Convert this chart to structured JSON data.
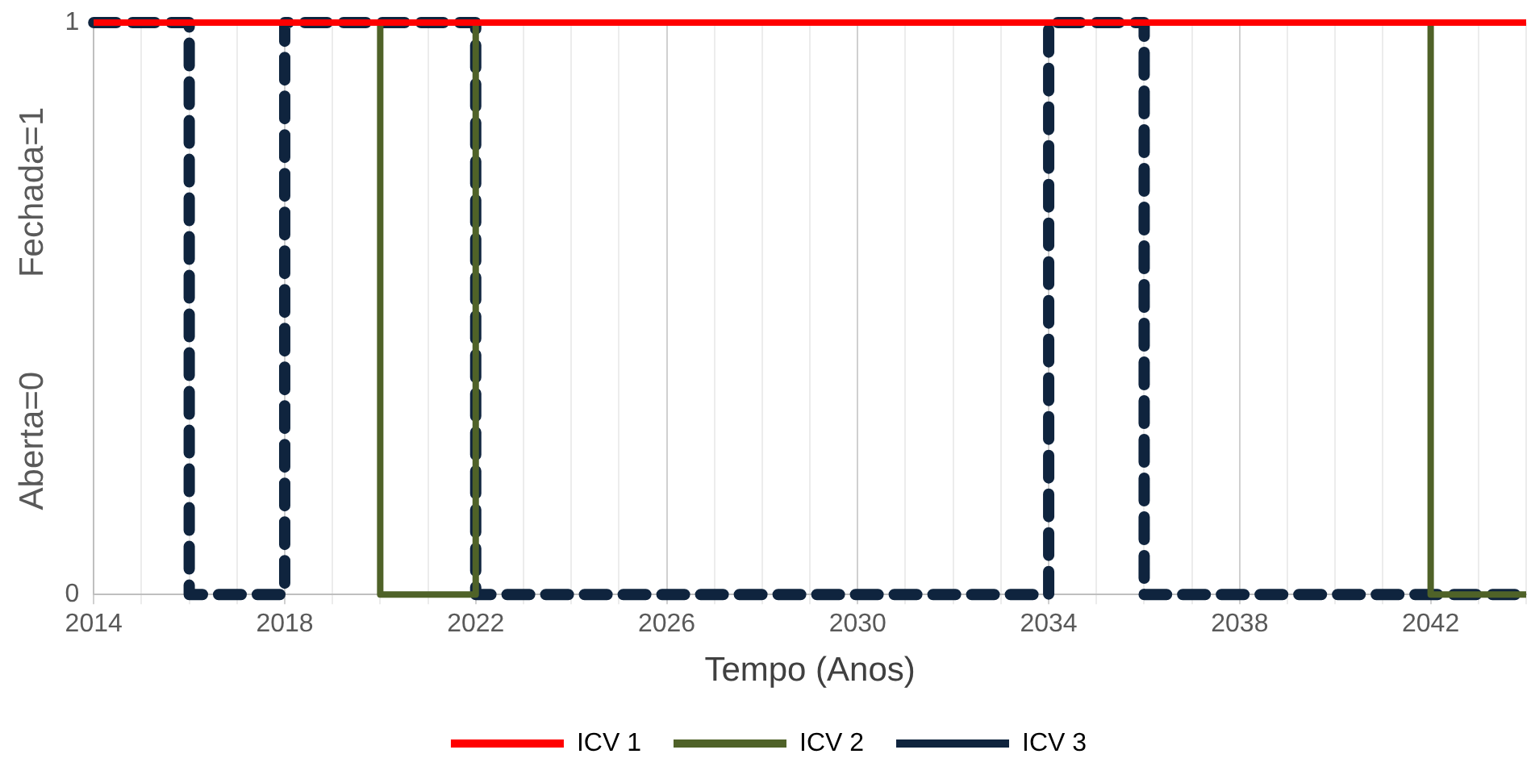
{
  "chart_data": {
    "type": "step",
    "xlabel": "Tempo (Anos)",
    "ylabel": "Aberta=0          Fechada=1",
    "series": [
      {
        "name": "ICV 1",
        "color": "#ff0000",
        "x": [
          2014,
          2044
        ],
        "values": [
          1,
          1
        ]
      },
      {
        "name": "ICV 2",
        "color": "#4f6228",
        "x": [
          2014,
          2020,
          2022,
          2042,
          2044
        ],
        "values": [
          1,
          0,
          1,
          0,
          0
        ]
      },
      {
        "name": "ICV 3",
        "color": "#0f243e",
        "line_style": "dashed",
        "x": [
          2014,
          2016,
          2018,
          2022,
          2034,
          2036,
          2044
        ],
        "values": [
          1,
          0,
          1,
          0,
          1,
          0,
          0
        ]
      }
    ],
    "xlim": [
      2014,
      2044
    ],
    "xticks": [
      2014,
      {
        "value": 2015,
        "label": null
      },
      {
        "value": 2016,
        "label": null
      },
      {
        "value": 2017,
        "label": null
      },
      2018,
      {
        "value": 2019,
        "label": null
      },
      {
        "value": 2020,
        "label": null
      },
      {
        "value": 2021,
        "label": null
      },
      2022,
      {
        "value": 2023,
        "label": null
      },
      {
        "value": 2024,
        "label": null
      },
      {
        "value": 2025,
        "label": null
      },
      2026,
      {
        "value": 2027,
        "label": null
      },
      {
        "value": 2028,
        "label": null
      },
      {
        "value": 2029,
        "label": null
      },
      2030,
      {
        "value": 2031,
        "label": null
      },
      {
        "value": 2032,
        "label": null
      },
      {
        "value": 2033,
        "label": null
      },
      2034,
      {
        "value": 2035,
        "label": null
      },
      {
        "value": 2036,
        "label": null
      },
      {
        "value": 2037,
        "label": null
      },
      2038,
      {
        "value": 2039,
        "label": null
      },
      {
        "value": 2040,
        "label": null
      },
      {
        "value": 2041,
        "label": null
      },
      2042,
      {
        "value": 2043,
        "label": null
      },
      {
        "value": 2044,
        "label": null
      }
    ],
    "ylim": [
      0,
      1
    ],
    "yticks": [
      0,
      1
    ],
    "grid": "x",
    "legend": "bottom"
  }
}
